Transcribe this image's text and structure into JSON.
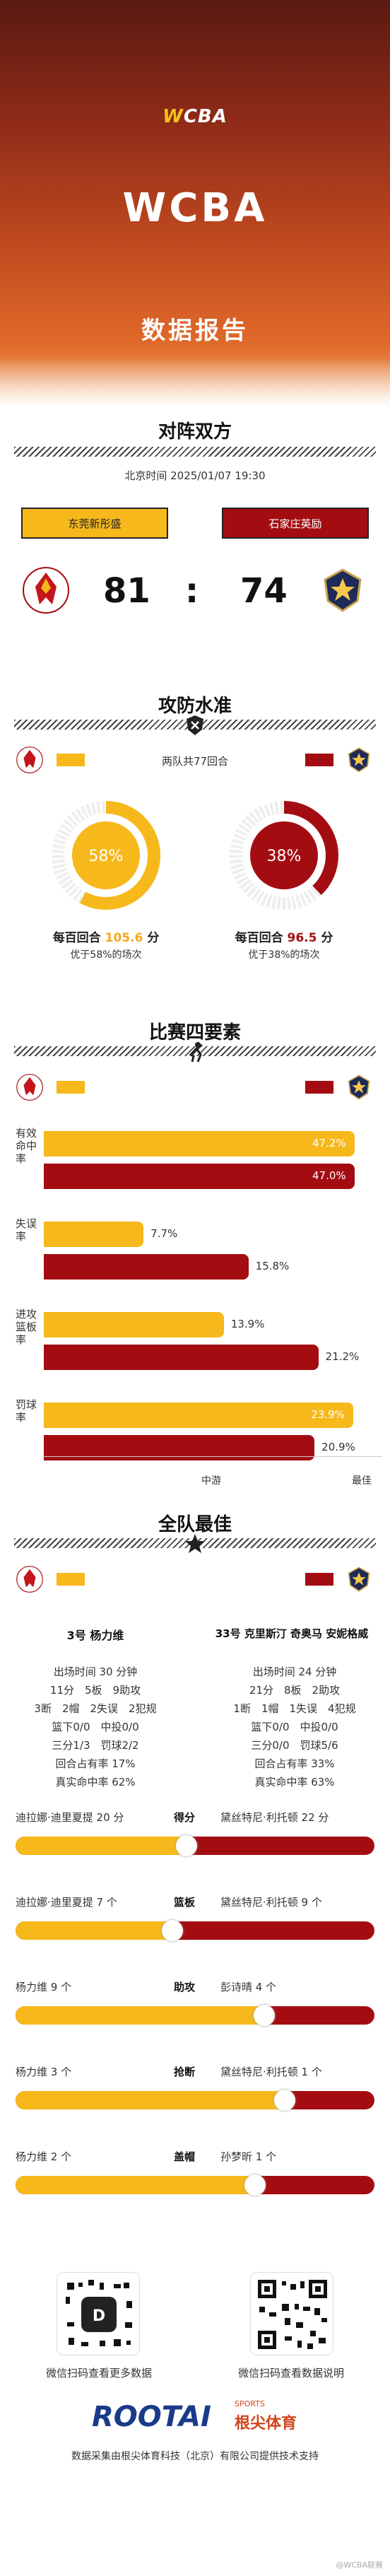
{
  "header": {
    "logo_prefix": "W",
    "logo_main": "CBA",
    "title": "WCBA",
    "subtitle": "数据报告"
  },
  "matchup": {
    "title": "对阵双方",
    "time": "北京时间 2025/01/07 19:30",
    "home": {
      "name": "东莞新彤盛",
      "score": "81",
      "color": "#f6b81b"
    },
    "away": {
      "name": "石家庄英励",
      "score": "74",
      "color": "#a30d12"
    },
    "sep": ":"
  },
  "defense": {
    "title": "攻防水准",
    "rounds": "两队共77回合",
    "home": {
      "pct": "58%",
      "pct_value": 0.58,
      "line1_prefix": "每百回合",
      "pts": "105.6",
      "line1_suffix": "分",
      "line2": "优于58%的场次"
    },
    "away": {
      "pct": "38%",
      "pct_value": 0.38,
      "line1_prefix": "每百回合",
      "pts": "96.5",
      "line1_suffix": "分",
      "line2": "优于38%的场次"
    }
  },
  "four": {
    "title": "比赛四要素",
    "metrics": [
      {
        "label": "有效命中率",
        "home": "47.2%",
        "home_value": 47.2,
        "away": "47.0%",
        "away_value": 47.0
      },
      {
        "label": "失误率",
        "home": "7.7%",
        "home_value": 7.7,
        "away": "15.8%",
        "away_value": 15.8
      },
      {
        "label": "进攻篮板率",
        "home": "13.9%",
        "home_value": 13.9,
        "away": "21.2%",
        "away_value": 21.2
      },
      {
        "label": "罚球率",
        "home": "23.9%",
        "home_value": 23.9,
        "away": "20.9%",
        "away_value": 20.9
      }
    ],
    "axis_mid": "中游",
    "axis_best": "最佳"
  },
  "best": {
    "title": "全队最佳",
    "home_player": {
      "name": "3号 杨力维",
      "lines": [
        "出场时间 30 分钟",
        "11分　5板　9助攻",
        "3断　2帽　2失误　2犯规",
        "篮下0/0　中投0/0",
        "三分1/3　罚球2/2",
        "回合占有率 17%",
        "真实命中率 62%"
      ]
    },
    "away_player": {
      "name": "33号 克里斯汀 奇奥马 安妮格威",
      "lines": [
        "出场时间 24 分钟",
        "21分　8板　2助攻",
        "1断　1帽　1失误　4犯规",
        "篮下0/0　中投0/0",
        "三分0/0　罚球5/6",
        "回合占有率 33%",
        "真实命中率 63%"
      ]
    },
    "leaders": [
      {
        "cat": "得分",
        "home": "迪拉娜·迪里夏提 20 分",
        "away": "黛丝特尼·利托顿 22 分",
        "home_value": 20,
        "away_value": 22
      },
      {
        "cat": "篮板",
        "home": "迪拉娜·迪里夏提 7 个",
        "away": "黛丝特尼·利托顿 9 个",
        "home_value": 7,
        "away_value": 9
      },
      {
        "cat": "助攻",
        "home": "杨力维 9 个",
        "away": "彭诗晴 4 个",
        "home_value": 9,
        "away_value": 4
      },
      {
        "cat": "抢断",
        "home": "杨力维 3 个",
        "away": "黛丝特尼·利托顿 1 个",
        "home_value": 3,
        "away_value": 1
      },
      {
        "cat": "盖帽",
        "home": "杨力维 2 个",
        "away": "孙梦昕 1 个",
        "home_value": 2,
        "away_value": 1
      }
    ]
  },
  "footer": {
    "qr1": "微信扫码查看更多数据",
    "qr2": "微信扫码查看数据说明",
    "brand": "ROOTAI",
    "brand_cn": "根尖体育",
    "brand_sports": "SPORTS",
    "credit": "数据采集由根尖体育科技（北京）有限公司提供技术支持",
    "watermark": "@WCBA联赛"
  }
}
